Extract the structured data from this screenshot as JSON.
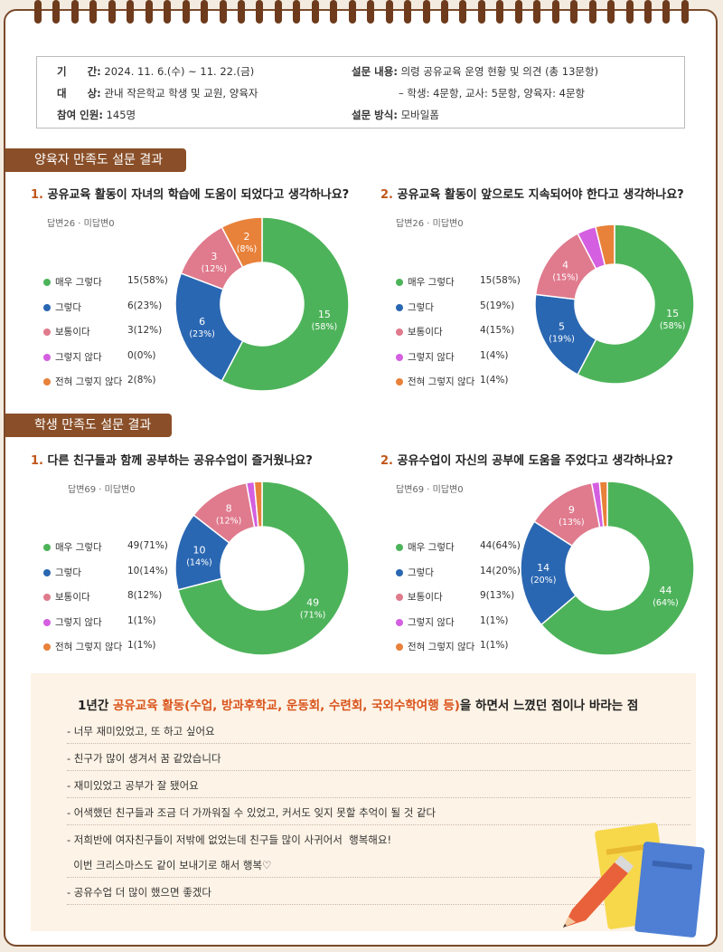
{
  "info": {
    "period_label": "기　　간:",
    "period_value": "2024. 11. 6.(수) ~ 11. 22.(금)",
    "target_label": "대　　상:",
    "target_value": "관내 작은학교 학생 및 교원, 양육자",
    "participants_label": "참여 인원:",
    "participants_value": "145명",
    "content_label": "설문 내용:",
    "content_value": "의령 공유교육 운영 현황 및 의견 (총 13문항)",
    "content_detail": "– 학생: 4문항, 교사: 5문항, 양육자: 4문항",
    "method_label": "설문 방식:",
    "method_value": "모바일폼"
  },
  "sections": {
    "parents": "양육자 만족도 설문 결과",
    "students": "학생 만족도 설문 결과"
  },
  "colors": {
    "very_yes": "#4db35a",
    "yes": "#2a67b2",
    "neutral": "#e07a8d",
    "no": "#d45fe0",
    "never": "#e8813a",
    "accent": "#c0561a",
    "header": "#8a4f28"
  },
  "questions": [
    {
      "num": "1.",
      "title": "공유교육 활동이 자녀의 학습에 도움이 되었다고 생각하나요?",
      "responses": "답변26 · 미답변0",
      "legend": [
        {
          "label": "매우 그렇다",
          "value": "15(58%)"
        },
        {
          "label": "그렇다",
          "value": "6(23%)"
        },
        {
          "label": "보통이다",
          "value": "3(12%)"
        },
        {
          "label": "그렇지 않다",
          "value": "0(0%)"
        },
        {
          "label": "전혀 그렇지 않다",
          "value": "2(8%)"
        }
      ],
      "segment_labels": [
        {
          "count": "15",
          "pct": "(58%)"
        },
        {
          "count": "6",
          "pct": "(23%)"
        },
        {
          "count": "3",
          "pct": "(12%)"
        },
        {
          "count": "",
          "pct": ""
        },
        {
          "count": "2",
          "pct": "(8%)"
        }
      ]
    },
    {
      "num": "2.",
      "title": "공유교육 활동이 앞으로도 지속되어야 한다고 생각하나요?",
      "responses": "답변26 · 미답변0",
      "legend": [
        {
          "label": "매우 그렇다",
          "value": "15(58%)"
        },
        {
          "label": "그렇다",
          "value": "5(19%)"
        },
        {
          "label": "보통이다",
          "value": "4(15%)"
        },
        {
          "label": "그렇지 않다",
          "value": "1(4%)"
        },
        {
          "label": "전혀 그렇지 않다",
          "value": "1(4%)"
        }
      ],
      "segment_labels": [
        {
          "count": "15",
          "pct": "(58%)"
        },
        {
          "count": "5",
          "pct": "(19%)"
        },
        {
          "count": "4",
          "pct": "(15%)"
        },
        {
          "count": "",
          "pct": ""
        },
        {
          "count": "",
          "pct": ""
        }
      ]
    },
    {
      "num": "1.",
      "title": "다른 친구들과 함께 공부하는 공유수업이 즐거웠나요?",
      "responses": "답변69 · 미답변0",
      "legend": [
        {
          "label": "매우 그렇다",
          "value": "49(71%)"
        },
        {
          "label": "그렇다",
          "value": "10(14%)"
        },
        {
          "label": "보통이다",
          "value": "8(12%)"
        },
        {
          "label": "그렇지 않다",
          "value": "1(1%)"
        },
        {
          "label": "전혀 그렇지 않다",
          "value": "1(1%)"
        }
      ],
      "segment_labels": [
        {
          "count": "49",
          "pct": "(71%)"
        },
        {
          "count": "10",
          "pct": "(14%)"
        },
        {
          "count": "8",
          "pct": "(12%)"
        },
        {
          "count": "",
          "pct": ""
        },
        {
          "count": "",
          "pct": ""
        }
      ]
    },
    {
      "num": "2.",
      "title": "공유수업이 자신의 공부에 도움을 주었다고 생각하나요?",
      "responses": "답변69 · 미답변0",
      "legend": [
        {
          "label": "매우 그렇다",
          "value": "44(64%)"
        },
        {
          "label": "그렇다",
          "value": "14(20%)"
        },
        {
          "label": "보통이다",
          "value": "9(13%)"
        },
        {
          "label": "그렇지 않다",
          "value": "1(1%)"
        },
        {
          "label": "전혀 그렇지 않다",
          "value": "1(1%)"
        }
      ],
      "segment_labels": [
        {
          "count": "44",
          "pct": "(64%)"
        },
        {
          "count": "14",
          "pct": "(20%)"
        },
        {
          "count": "9",
          "pct": "(13%)"
        },
        {
          "count": "",
          "pct": ""
        },
        {
          "count": "",
          "pct": ""
        }
      ]
    }
  ],
  "chart_data": [
    {
      "type": "pie",
      "categories": [
        "매우 그렇다",
        "그렇다",
        "보통이다",
        "그렇지 않다",
        "전혀 그렇지 않다"
      ],
      "values": [
        15,
        6,
        3,
        0,
        2
      ]
    },
    {
      "type": "pie",
      "categories": [
        "매우 그렇다",
        "그렇다",
        "보통이다",
        "그렇지 않다",
        "전혀 그렇지 않다"
      ],
      "values": [
        15,
        5,
        4,
        1,
        1
      ]
    },
    {
      "type": "pie",
      "categories": [
        "매우 그렇다",
        "그렇다",
        "보통이다",
        "그렇지 않다",
        "전혀 그렇지 않다"
      ],
      "values": [
        49,
        10,
        8,
        1,
        1
      ]
    },
    {
      "type": "pie",
      "categories": [
        "매우 그렇다",
        "그렇다",
        "보통이다",
        "그렇지 않다",
        "전혀 그렇지 않다"
      ],
      "values": [
        44,
        14,
        9,
        1,
        1
      ]
    }
  ],
  "comments": {
    "title_prefix": "1년간 ",
    "title_highlight": "공유교육 활동(수업, 방과후학교, 운동회, 수련회, 국외수학여행 등)",
    "title_suffix": "을 하면서 느꼈던 점이나 바라는 점",
    "lines": [
      "- 너무 재미있었고, 또 하고 싶어요",
      "- 친구가 많이 생겨서 꿈 같았습니다",
      "- 재미있었고 공부가 잘 됐어요",
      "- 어색했던 친구들과 조금 더 가까워질 수 있었고, 커서도 잊지 못할 추억이 될 것 같다",
      "- 저희반에 여자친구들이 저밖에 없었는데 친구들 많이 사귀어서  행복해요!",
      "  이번 크리스마스도 같이 보내기로 해서 행복♡",
      "- 공유수업 더 많이 했으면 좋겠다"
    ]
  }
}
